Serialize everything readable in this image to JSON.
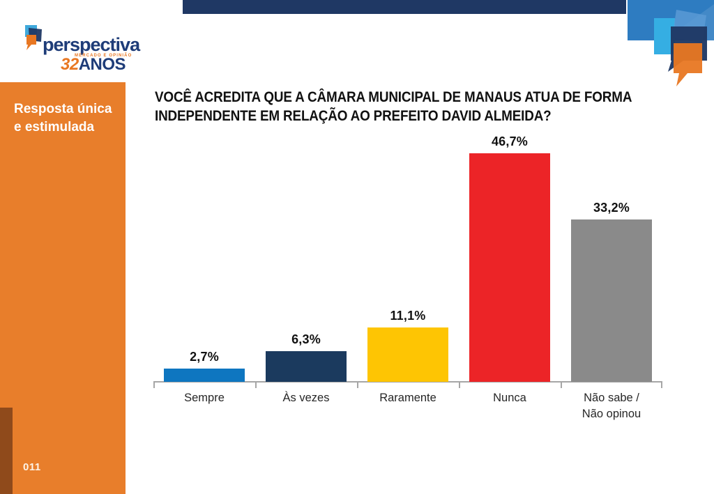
{
  "page": {
    "number": "011"
  },
  "sidebar": {
    "label": "Resposta única\ne estimulada"
  },
  "logo": {
    "name": "perspectiva",
    "tagline": "MERCADO E OPINIÃO",
    "anniversary_number": "32",
    "anniversary_text": "ANOS"
  },
  "question": {
    "lines": [
      "VOCÊ ACREDITA QUE A CÂMARA MUNICIPAL DE MANAUS ATUA DE FORMA",
      "INDEPENDENTE EM RELAÇÃO AO PREFEITO DAVID ALMEIDA?"
    ]
  },
  "chart_data": {
    "type": "bar",
    "title": "Você acredita que a Câmara Municipal de Manaus atua de forma independente em relação ao prefeito David Almeida?",
    "categories": [
      "Sempre",
      "Às vezes",
      "Raramente",
      "Nunca",
      "Não sabe /\nNão opinou"
    ],
    "values": [
      2.7,
      6.3,
      11.1,
      46.7,
      33.2
    ],
    "value_labels": [
      "2,7%",
      "6,3%",
      "11,1%",
      "46,7%",
      "33,2%"
    ],
    "bar_colors": [
      "#0E76C0",
      "#1B3A5E",
      "#FEC503",
      "#EC2427",
      "#8A8A8A"
    ],
    "xlabel": "",
    "ylabel": "",
    "ylim": [
      0,
      50
    ],
    "grid": false,
    "legend": false,
    "data_labels_position": "above-bars"
  },
  "colors": {
    "sidebar_orange": "#E87E2B",
    "sidebar_dark_strip": "#8F4A1B",
    "top_bar_navy": "#1F3864",
    "top_right_blue": "#2E7CC1",
    "logo_navy": "#1E3C78",
    "logo_orange": "#E87722",
    "axis_gray": "#A6A6A6",
    "title_text": "#111111"
  }
}
